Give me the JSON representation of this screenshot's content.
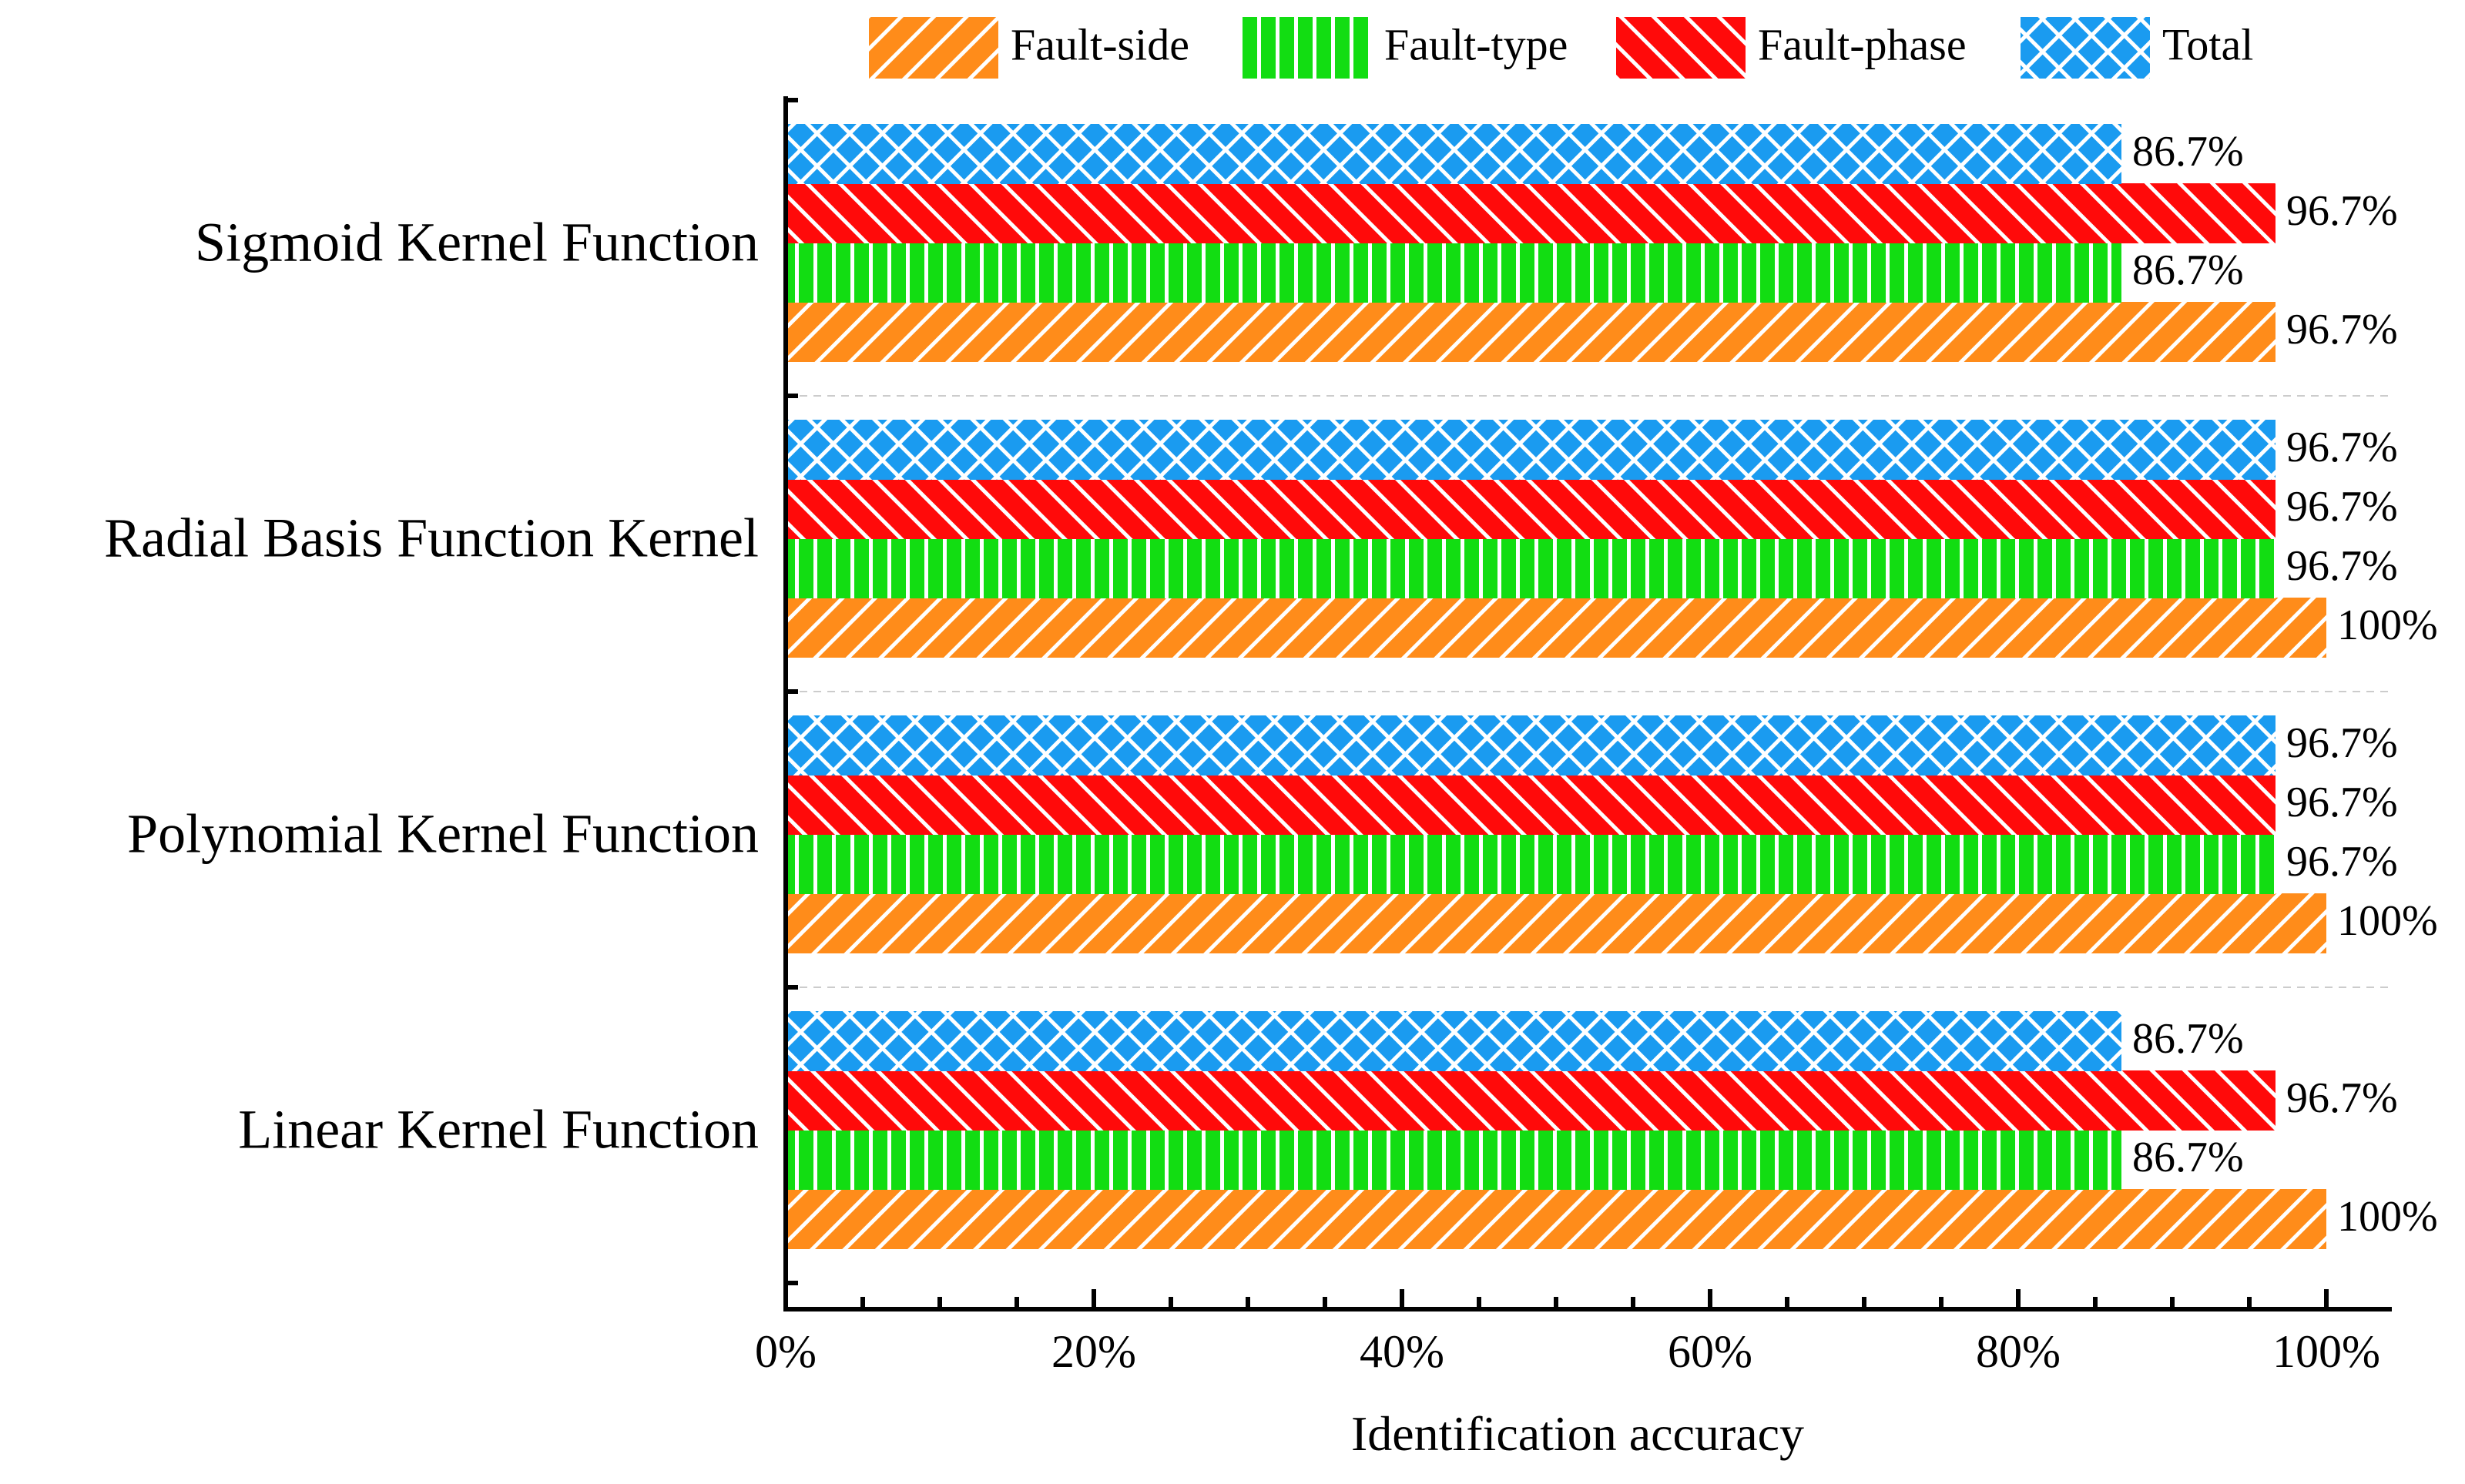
{
  "chart_data": {
    "type": "bar",
    "orientation": "horizontal",
    "title": "",
    "xlabel": "Identification accuracy",
    "ylabel": "",
    "xlim": [
      0,
      104
    ],
    "x_ticks": [
      "0%",
      "20%",
      "40%",
      "60%",
      "80%",
      "100%"
    ],
    "x_tick_values": [
      0,
      20,
      40,
      60,
      80,
      100
    ],
    "categories": [
      "Sigmoid Kernel Function",
      "Radial Basis Function Kernel",
      "Polynomial Kernel Function",
      "Linear Kernel Function"
    ],
    "series": [
      {
        "name": "Fault-side",
        "color": "#ff8c1a",
        "pattern": "diagonal-up",
        "values": [
          96.7,
          100,
          100,
          100
        ],
        "labels": [
          "96.7%",
          "100%",
          "100%",
          "100%"
        ]
      },
      {
        "name": "Fault-type",
        "color": "#12dd12",
        "pattern": "vertical",
        "values": [
          86.7,
          96.7,
          96.7,
          86.7
        ],
        "labels": [
          "86.7%",
          "96.7%",
          "96.7%",
          "86.7%"
        ]
      },
      {
        "name": "Fault-phase",
        "color": "#ff0a0a",
        "pattern": "diagonal-down",
        "values": [
          96.7,
          96.7,
          96.7,
          96.7
        ],
        "labels": [
          "96.7%",
          "96.7%",
          "96.7%",
          "96.7%"
        ]
      },
      {
        "name": "Total",
        "color": "#1a9bf0",
        "pattern": "crosshatch",
        "values": [
          86.7,
          96.7,
          96.7,
          86.7
        ],
        "labels": [
          "86.7%",
          "96.7%",
          "96.7%",
          "86.7%"
        ]
      }
    ],
    "legend_position": "top",
    "grid": false
  }
}
